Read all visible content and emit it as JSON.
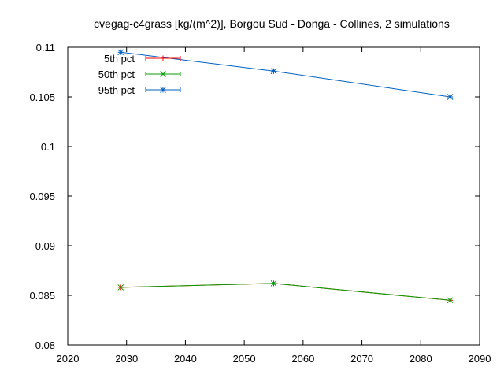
{
  "chart_data": {
    "type": "line",
    "title": "cvegag-c4grass [kg/(m^2)], Borgou Sud - Donga - Collines, 2 simulations",
    "xlabel": "",
    "ylabel": "",
    "xlim": [
      2020,
      2090
    ],
    "ylim": [
      0.08,
      0.11
    ],
    "x_ticks": [
      "2020",
      "2030",
      "2040",
      "2050",
      "2060",
      "2070",
      "2080",
      "2090"
    ],
    "y_ticks": [
      "0.08",
      "0.085",
      "0.09",
      "0.095",
      "0.1",
      "0.105",
      "0.11"
    ],
    "grid": false,
    "legend_position": "top-left",
    "x": [
      2029,
      2055,
      2085
    ],
    "series": [
      {
        "name": "5th pct",
        "color": "#ff0000",
        "marker": "plus",
        "values": [
          0.0858,
          0.0862,
          0.0845
        ]
      },
      {
        "name": "50th pct",
        "color": "#00a000",
        "marker": "x",
        "values": [
          0.0858,
          0.0862,
          0.0845
        ]
      },
      {
        "name": "95th pct",
        "color": "#0060c0",
        "marker": "star",
        "values": [
          0.1095,
          0.1076,
          0.105
        ]
      }
    ]
  }
}
